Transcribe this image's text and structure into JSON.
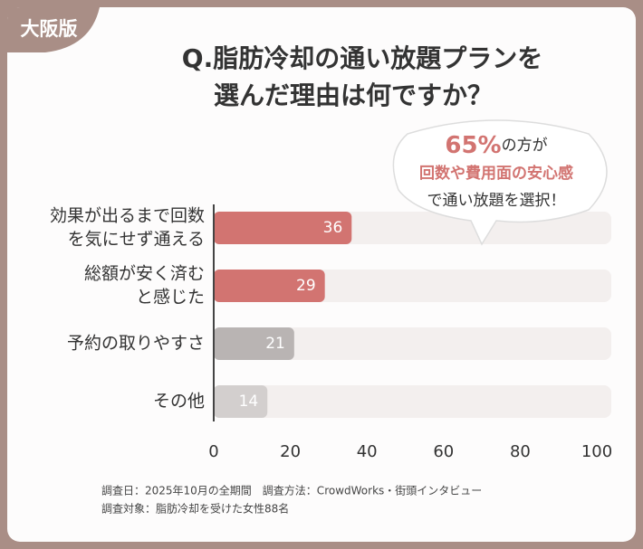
{
  "badge": "大阪版",
  "callout": {
    "highlight": "65%",
    "line1_rest": "の方が",
    "line2": "回数や費用面の安心感",
    "line3": "で通い放題を選択！"
  },
  "footnotes": [
    "調査日：2025年10月の全期間　調査方法：CrowdWorks・街頭インタビュー",
    "調査対象：脂肪冷却を受けた女性88名"
  ],
  "chart_data": {
    "type": "bar",
    "orientation": "horizontal",
    "title": [
      "Q.脂肪冷却の通い放題プランを",
      "選んだ理由は何ですか？"
    ],
    "categories": [
      [
        "効果が出るまで回数",
        "を気にせず通える"
      ],
      [
        "総額が安く済む",
        "と感じた"
      ],
      [
        "予約の取りやすさ"
      ],
      [
        "その他"
      ]
    ],
    "values": [
      36,
      29,
      21,
      14
    ],
    "colors": [
      "#d27471",
      "#d27471",
      "#b9b4b3",
      "#d3cfce"
    ],
    "xlim": [
      0,
      100
    ],
    "xticks": [
      0,
      20,
      40,
      60,
      80,
      100
    ]
  }
}
